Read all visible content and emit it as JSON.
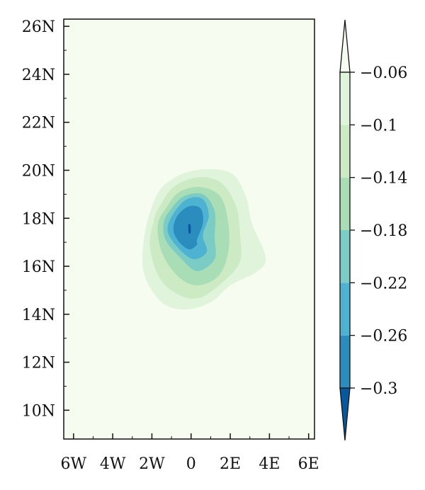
{
  "chart_data": {
    "type": "contour_map",
    "title": "",
    "xlabel": "",
    "ylabel": "",
    "x_ticks": [
      {
        "value": -6,
        "label": "6W"
      },
      {
        "value": -4,
        "label": "4W"
      },
      {
        "value": -2,
        "label": "2W"
      },
      {
        "value": 0,
        "label": "0"
      },
      {
        "value": 2,
        "label": "2E"
      },
      {
        "value": 4,
        "label": "4E"
      },
      {
        "value": 6,
        "label": "6E"
      }
    ],
    "y_ticks": [
      {
        "value": 10,
        "label": "10N"
      },
      {
        "value": 12,
        "label": "12N"
      },
      {
        "value": 14,
        "label": "14N"
      },
      {
        "value": 16,
        "label": "16N"
      },
      {
        "value": 18,
        "label": "18N"
      },
      {
        "value": 20,
        "label": "20N"
      },
      {
        "value": 22,
        "label": "22N"
      },
      {
        "value": 24,
        "label": "24N"
      },
      {
        "value": 26,
        "label": "26N"
      }
    ],
    "xlim": [
      -6.5,
      6.3
    ],
    "ylim": [
      8.8,
      26.3
    ],
    "colorbar": {
      "levels": [
        -0.3,
        -0.26,
        -0.22,
        -0.18,
        -0.14,
        -0.1,
        -0.06
      ],
      "labels": [
        "−0.3",
        "−0.26",
        "−0.22",
        "−0.18",
        "−0.14",
        "−0.1",
        "−0.06"
      ],
      "colors": [
        "#08589e",
        "#2b8cbe",
        "#4eb3d3",
        "#7bccc4",
        "#a8ddb5",
        "#ccebc5",
        "#e0f3db",
        "#f7fcf0"
      ]
    },
    "background_color": "#f7fcf0",
    "field": {
      "center": [
        -0.1,
        17.6
      ],
      "min_value": -0.3,
      "contours": [
        {
          "level": -0.06,
          "color": "#e0f3db",
          "points": [
            [
              -1.9,
              18.7
            ],
            [
              -1.2,
              19.5
            ],
            [
              0.2,
              20.0
            ],
            [
              2.0,
              19.9
            ],
            [
              2.8,
              18.9
            ],
            [
              3.1,
              17.8
            ],
            [
              3.8,
              16.4
            ],
            [
              3.4,
              15.8
            ],
            [
              2.0,
              15.2
            ],
            [
              1.0,
              14.5
            ],
            [
              -0.3,
              14.2
            ],
            [
              -1.5,
              14.5
            ],
            [
              -2.4,
              15.7
            ],
            [
              -2.4,
              17.2
            ]
          ]
        },
        {
          "level": -0.1,
          "color": "#ccebc5",
          "points": [
            [
              -1.6,
              18.5
            ],
            [
              -0.9,
              19.3
            ],
            [
              0.3,
              19.7
            ],
            [
              1.5,
              19.5
            ],
            [
              2.3,
              18.5
            ],
            [
              2.5,
              17.3
            ],
            [
              2.5,
              16.2
            ],
            [
              1.7,
              15.4
            ],
            [
              0.5,
              14.7
            ],
            [
              -0.6,
              14.8
            ],
            [
              -1.6,
              15.5
            ],
            [
              -2.1,
              16.8
            ],
            [
              -1.9,
              17.9
            ]
          ]
        },
        {
          "level": -0.14,
          "color": "#a8ddb5",
          "points": [
            [
              -1.3,
              18.4
            ],
            [
              -0.6,
              19.1
            ],
            [
              0.5,
              19.3
            ],
            [
              1.5,
              18.9
            ],
            [
              1.9,
              17.8
            ],
            [
              1.9,
              16.6
            ],
            [
              1.4,
              15.6
            ],
            [
              0.3,
              15.2
            ],
            [
              -0.7,
              15.6
            ],
            [
              -1.5,
              16.6
            ],
            [
              -1.7,
              17.7
            ]
          ]
        },
        {
          "level": -0.18,
          "color": "#7bccc4",
          "points": [
            [
              -1.1,
              18.3
            ],
            [
              -0.4,
              18.9
            ],
            [
              0.6,
              19.0
            ],
            [
              1.2,
              18.3
            ],
            [
              1.2,
              17.2
            ],
            [
              1.2,
              16.3
            ],
            [
              0.3,
              15.8
            ],
            [
              -0.6,
              16.4
            ],
            [
              -1.3,
              17.1
            ],
            [
              -1.4,
              17.8
            ]
          ]
        },
        {
          "level": -0.22,
          "color": "#4eb3d3",
          "points": [
            [
              -0.9,
              18.2
            ],
            [
              -0.2,
              18.8
            ],
            [
              0.6,
              18.8
            ],
            [
              0.9,
              18.1
            ],
            [
              0.6,
              17.3
            ],
            [
              0.8,
              16.6
            ],
            [
              0.1,
              16.3
            ],
            [
              -0.7,
              16.8
            ],
            [
              -1.2,
              17.5
            ]
          ]
        },
        {
          "level": -0.26,
          "color": "#2b8cbe",
          "points": [
            [
              -0.7,
              18.1
            ],
            [
              -0.1,
              18.5
            ],
            [
              0.5,
              18.4
            ],
            [
              0.6,
              17.8
            ],
            [
              0.3,
              17.1
            ],
            [
              0.3,
              16.9
            ],
            [
              -0.1,
              16.7
            ],
            [
              -0.6,
              17.0
            ],
            [
              -0.9,
              17.5
            ]
          ]
        },
        {
          "level": -0.3,
          "color": "#08589e",
          "points": [
            [
              -0.13,
              17.75
            ],
            [
              -0.03,
              17.72
            ],
            [
              -0.02,
              17.4
            ],
            [
              -0.12,
              17.38
            ],
            [
              -0.14,
              17.55
            ]
          ]
        }
      ]
    }
  }
}
